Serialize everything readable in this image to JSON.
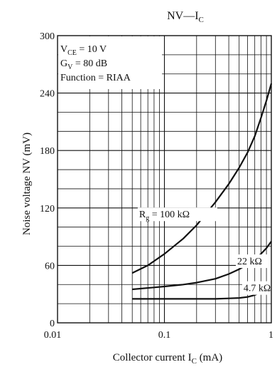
{
  "chart_data": {
    "type": "line",
    "title": {
      "main": "NV",
      "sep": "—",
      "base": "I",
      "sub": "C"
    },
    "xlabel": {
      "text": "Collector current",
      "var": "I",
      "sub": "C",
      "unit": "(mA)"
    },
    "ylabel": "Noise voltage  NV  (mV)",
    "xscale": "log",
    "xlim": [
      0.01,
      1
    ],
    "ylim": [
      0,
      300
    ],
    "x_ticks": [
      {
        "value": 0.01,
        "label": "0.01"
      },
      {
        "value": 0.1,
        "label": "0.1"
      },
      {
        "value": 1,
        "label": "1"
      }
    ],
    "y_ticks": [
      {
        "value": 0,
        "label": "0"
      },
      {
        "value": 60,
        "label": "60"
      },
      {
        "value": 120,
        "label": "120"
      },
      {
        "value": 180,
        "label": "180"
      },
      {
        "value": 240,
        "label": "240"
      },
      {
        "value": 300,
        "label": "300"
      }
    ],
    "grid": true,
    "conditions": [
      {
        "var": "V",
        "sub": "CE",
        "rest": " = 10 V"
      },
      {
        "var": "G",
        "sub": "V",
        "rest": " = 80 dB"
      },
      {
        "var": "Function = RIAA",
        "sub": "",
        "rest": ""
      }
    ],
    "series": [
      {
        "name": "R_g = 100 kΩ",
        "label": {
          "var": "R",
          "sub": "g",
          "rest": " = 100 kΩ"
        },
        "x": [
          0.05,
          0.07,
          0.1,
          0.15,
          0.2,
          0.3,
          0.4,
          0.5,
          0.6,
          0.7,
          0.8,
          0.9,
          1.0
        ],
        "y": [
          52,
          60,
          72,
          88,
          102,
          126,
          145,
          162,
          178,
          195,
          214,
          232,
          250
        ]
      },
      {
        "name": "22 kΩ",
        "label": {
          "var": "22 kΩ",
          "sub": "",
          "rest": ""
        },
        "x": [
          0.05,
          0.08,
          0.1,
          0.15,
          0.2,
          0.3,
          0.4,
          0.5,
          0.6,
          0.7,
          0.8,
          0.9,
          1.0
        ],
        "y": [
          35,
          37,
          38,
          40,
          42,
          46,
          51,
          56,
          61,
          66,
          72,
          78,
          85
        ]
      },
      {
        "name": "4.7 kΩ",
        "label": {
          "var": "4.7 kΩ",
          "sub": "",
          "rest": ""
        },
        "x": [
          0.05,
          0.1,
          0.2,
          0.3,
          0.4,
          0.5,
          0.6,
          0.7,
          0.8,
          0.9,
          1.0
        ],
        "y": [
          25,
          25,
          25,
          25,
          25.5,
          26,
          27,
          29,
          32,
          36,
          40
        ]
      }
    ]
  }
}
